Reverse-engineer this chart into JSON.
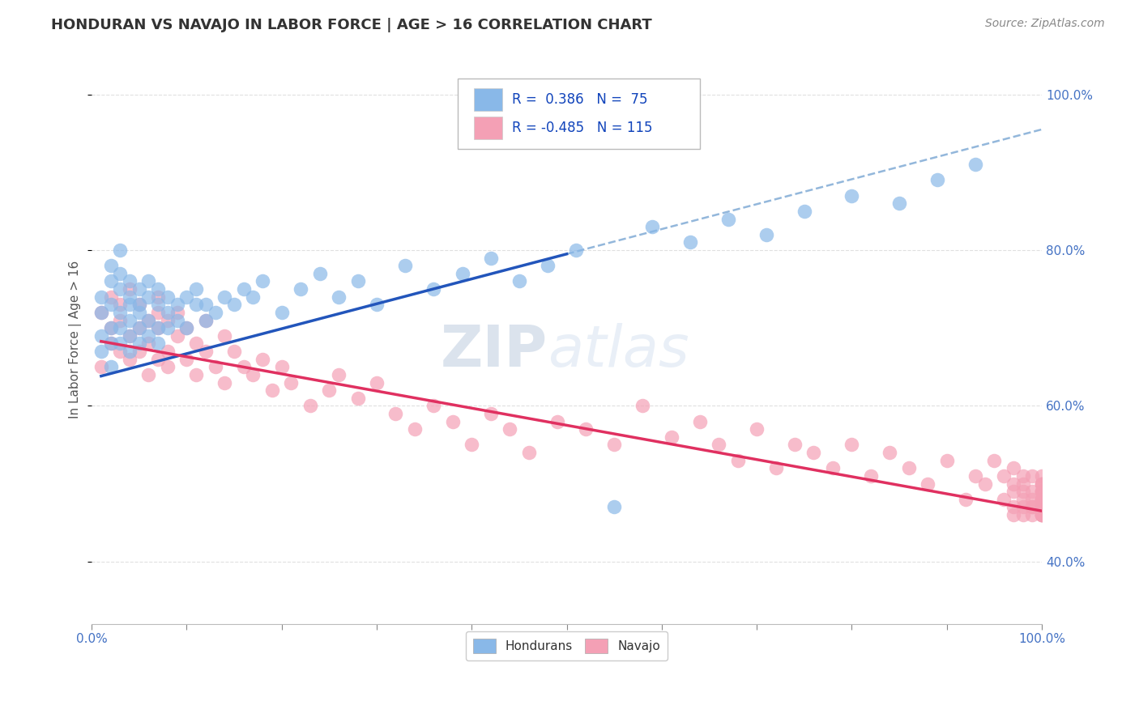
{
  "title": "HONDURAN VS NAVAJO IN LABOR FORCE | AGE > 16 CORRELATION CHART",
  "source": "Source: ZipAtlas.com",
  "ylabel": "In Labor Force | Age > 16",
  "xlim": [
    0.0,
    1.0
  ],
  "ylim": [
    0.32,
    1.05
  ],
  "xticks": [
    0.0,
    0.1,
    0.2,
    0.3,
    0.4,
    0.5,
    0.6,
    0.7,
    0.8,
    0.9,
    1.0
  ],
  "yticks": [
    0.4,
    0.6,
    0.8,
    1.0
  ],
  "ytick_labels": [
    "40.0%",
    "60.0%",
    "80.0%",
    "100.0%"
  ],
  "honduran_color": "#89B8E8",
  "navajo_color": "#F4A0B5",
  "honduran_R": 0.386,
  "honduran_N": 75,
  "navajo_R": -0.485,
  "navajo_N": 115,
  "honduran_line_color": "#2255BB",
  "navajo_line_color": "#E03060",
  "honduran_dash_color": "#6699CC",
  "grid_color": "#DDDDDD",
  "background_color": "#FFFFFF",
  "watermark_zip": "ZIP",
  "watermark_atlas": "atlas",
  "legend_hondurans": "Hondurans",
  "legend_navajo": "Navajo",
  "honduran_scatter_x": [
    0.01,
    0.01,
    0.01,
    0.01,
    0.02,
    0.02,
    0.02,
    0.02,
    0.02,
    0.02,
    0.03,
    0.03,
    0.03,
    0.03,
    0.03,
    0.03,
    0.04,
    0.04,
    0.04,
    0.04,
    0.04,
    0.04,
    0.05,
    0.05,
    0.05,
    0.05,
    0.05,
    0.06,
    0.06,
    0.06,
    0.06,
    0.07,
    0.07,
    0.07,
    0.07,
    0.08,
    0.08,
    0.08,
    0.09,
    0.09,
    0.1,
    0.1,
    0.11,
    0.11,
    0.12,
    0.12,
    0.13,
    0.14,
    0.15,
    0.16,
    0.17,
    0.18,
    0.2,
    0.22,
    0.24,
    0.26,
    0.28,
    0.3,
    0.33,
    0.36,
    0.39,
    0.42,
    0.45,
    0.48,
    0.51,
    0.55,
    0.59,
    0.63,
    0.67,
    0.71,
    0.75,
    0.8,
    0.85,
    0.89,
    0.93
  ],
  "honduran_scatter_y": [
    0.72,
    0.69,
    0.74,
    0.67,
    0.76,
    0.7,
    0.73,
    0.68,
    0.78,
    0.65,
    0.8,
    0.75,
    0.72,
    0.7,
    0.68,
    0.77,
    0.73,
    0.69,
    0.76,
    0.71,
    0.74,
    0.67,
    0.72,
    0.75,
    0.7,
    0.73,
    0.68,
    0.74,
    0.71,
    0.76,
    0.69,
    0.73,
    0.7,
    0.75,
    0.68,
    0.72,
    0.74,
    0.7,
    0.73,
    0.71,
    0.74,
    0.7,
    0.73,
    0.75,
    0.71,
    0.73,
    0.72,
    0.74,
    0.73,
    0.75,
    0.74,
    0.76,
    0.72,
    0.75,
    0.77,
    0.74,
    0.76,
    0.73,
    0.78,
    0.75,
    0.77,
    0.79,
    0.76,
    0.78,
    0.8,
    0.47,
    0.83,
    0.81,
    0.84,
    0.82,
    0.85,
    0.87,
    0.86,
    0.89,
    0.91
  ],
  "navajo_scatter_x": [
    0.01,
    0.01,
    0.02,
    0.02,
    0.02,
    0.03,
    0.03,
    0.03,
    0.04,
    0.04,
    0.04,
    0.05,
    0.05,
    0.05,
    0.06,
    0.06,
    0.06,
    0.07,
    0.07,
    0.07,
    0.07,
    0.08,
    0.08,
    0.08,
    0.09,
    0.09,
    0.1,
    0.1,
    0.11,
    0.11,
    0.12,
    0.12,
    0.13,
    0.14,
    0.14,
    0.15,
    0.16,
    0.17,
    0.18,
    0.19,
    0.2,
    0.21,
    0.23,
    0.25,
    0.26,
    0.28,
    0.3,
    0.32,
    0.34,
    0.36,
    0.38,
    0.4,
    0.42,
    0.44,
    0.46,
    0.49,
    0.52,
    0.55,
    0.58,
    0.61,
    0.64,
    0.66,
    0.68,
    0.7,
    0.72,
    0.74,
    0.76,
    0.78,
    0.8,
    0.82,
    0.84,
    0.86,
    0.88,
    0.9,
    0.92,
    0.93,
    0.94,
    0.95,
    0.96,
    0.96,
    0.97,
    0.97,
    0.97,
    0.97,
    0.97,
    0.98,
    0.98,
    0.98,
    0.98,
    0.98,
    0.98,
    0.99,
    0.99,
    0.99,
    0.99,
    0.99,
    0.99,
    1.0,
    1.0,
    1.0,
    1.0,
    1.0,
    1.0,
    1.0,
    1.0,
    1.0,
    1.0,
    1.0,
    1.0,
    1.0,
    1.0,
    1.0,
    1.0,
    1.0,
    1.0
  ],
  "navajo_scatter_y": [
    0.72,
    0.65,
    0.7,
    0.74,
    0.68,
    0.71,
    0.67,
    0.73,
    0.69,
    0.75,
    0.66,
    0.7,
    0.73,
    0.67,
    0.71,
    0.68,
    0.64,
    0.72,
    0.66,
    0.7,
    0.74,
    0.67,
    0.71,
    0.65,
    0.69,
    0.72,
    0.66,
    0.7,
    0.68,
    0.64,
    0.67,
    0.71,
    0.65,
    0.69,
    0.63,
    0.67,
    0.65,
    0.64,
    0.66,
    0.62,
    0.65,
    0.63,
    0.6,
    0.62,
    0.64,
    0.61,
    0.63,
    0.59,
    0.57,
    0.6,
    0.58,
    0.55,
    0.59,
    0.57,
    0.54,
    0.58,
    0.57,
    0.55,
    0.6,
    0.56,
    0.58,
    0.55,
    0.53,
    0.57,
    0.52,
    0.55,
    0.54,
    0.52,
    0.55,
    0.51,
    0.54,
    0.52,
    0.5,
    0.53,
    0.48,
    0.51,
    0.5,
    0.53,
    0.48,
    0.51,
    0.47,
    0.5,
    0.49,
    0.46,
    0.52,
    0.49,
    0.47,
    0.51,
    0.48,
    0.46,
    0.5,
    0.47,
    0.49,
    0.46,
    0.48,
    0.51,
    0.47,
    0.5,
    0.48,
    0.46,
    0.49,
    0.47,
    0.5,
    0.48,
    0.46,
    0.49,
    0.47,
    0.51,
    0.48,
    0.46,
    0.49,
    0.47,
    0.5,
    0.48,
    0.46
  ]
}
